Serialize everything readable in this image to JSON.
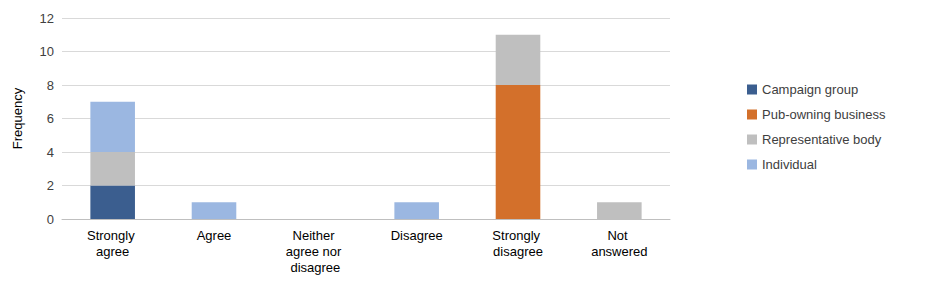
{
  "chart_data": {
    "type": "bar",
    "stacked": true,
    "grid": true,
    "legend": "right",
    "y_label": "Frequency",
    "categories": [
      "Strongly agree",
      "Agree",
      "Neither agree nor disagree",
      "Disagree",
      "Strongly disagree",
      "Not answered"
    ],
    "series": [
      {
        "name": "Campaign group",
        "color": "#3b5e8f",
        "values": [
          2,
          0,
          0,
          0,
          0,
          0
        ]
      },
      {
        "name": "Pub-owning business",
        "color": "#d3702b",
        "values": [
          0,
          0,
          0,
          0,
          8,
          0
        ]
      },
      {
        "name": "Representative body",
        "color": "#bfbfbf",
        "values": [
          2,
          0,
          0,
          0,
          3,
          1
        ]
      },
      {
        "name": "Individual",
        "color": "#9bb7e1",
        "values": [
          3,
          1,
          0,
          1,
          0,
          0
        ]
      }
    ],
    "ylim": [
      0,
      12
    ],
    "yticks": [
      0,
      2,
      4,
      6,
      8,
      10,
      12
    ]
  }
}
